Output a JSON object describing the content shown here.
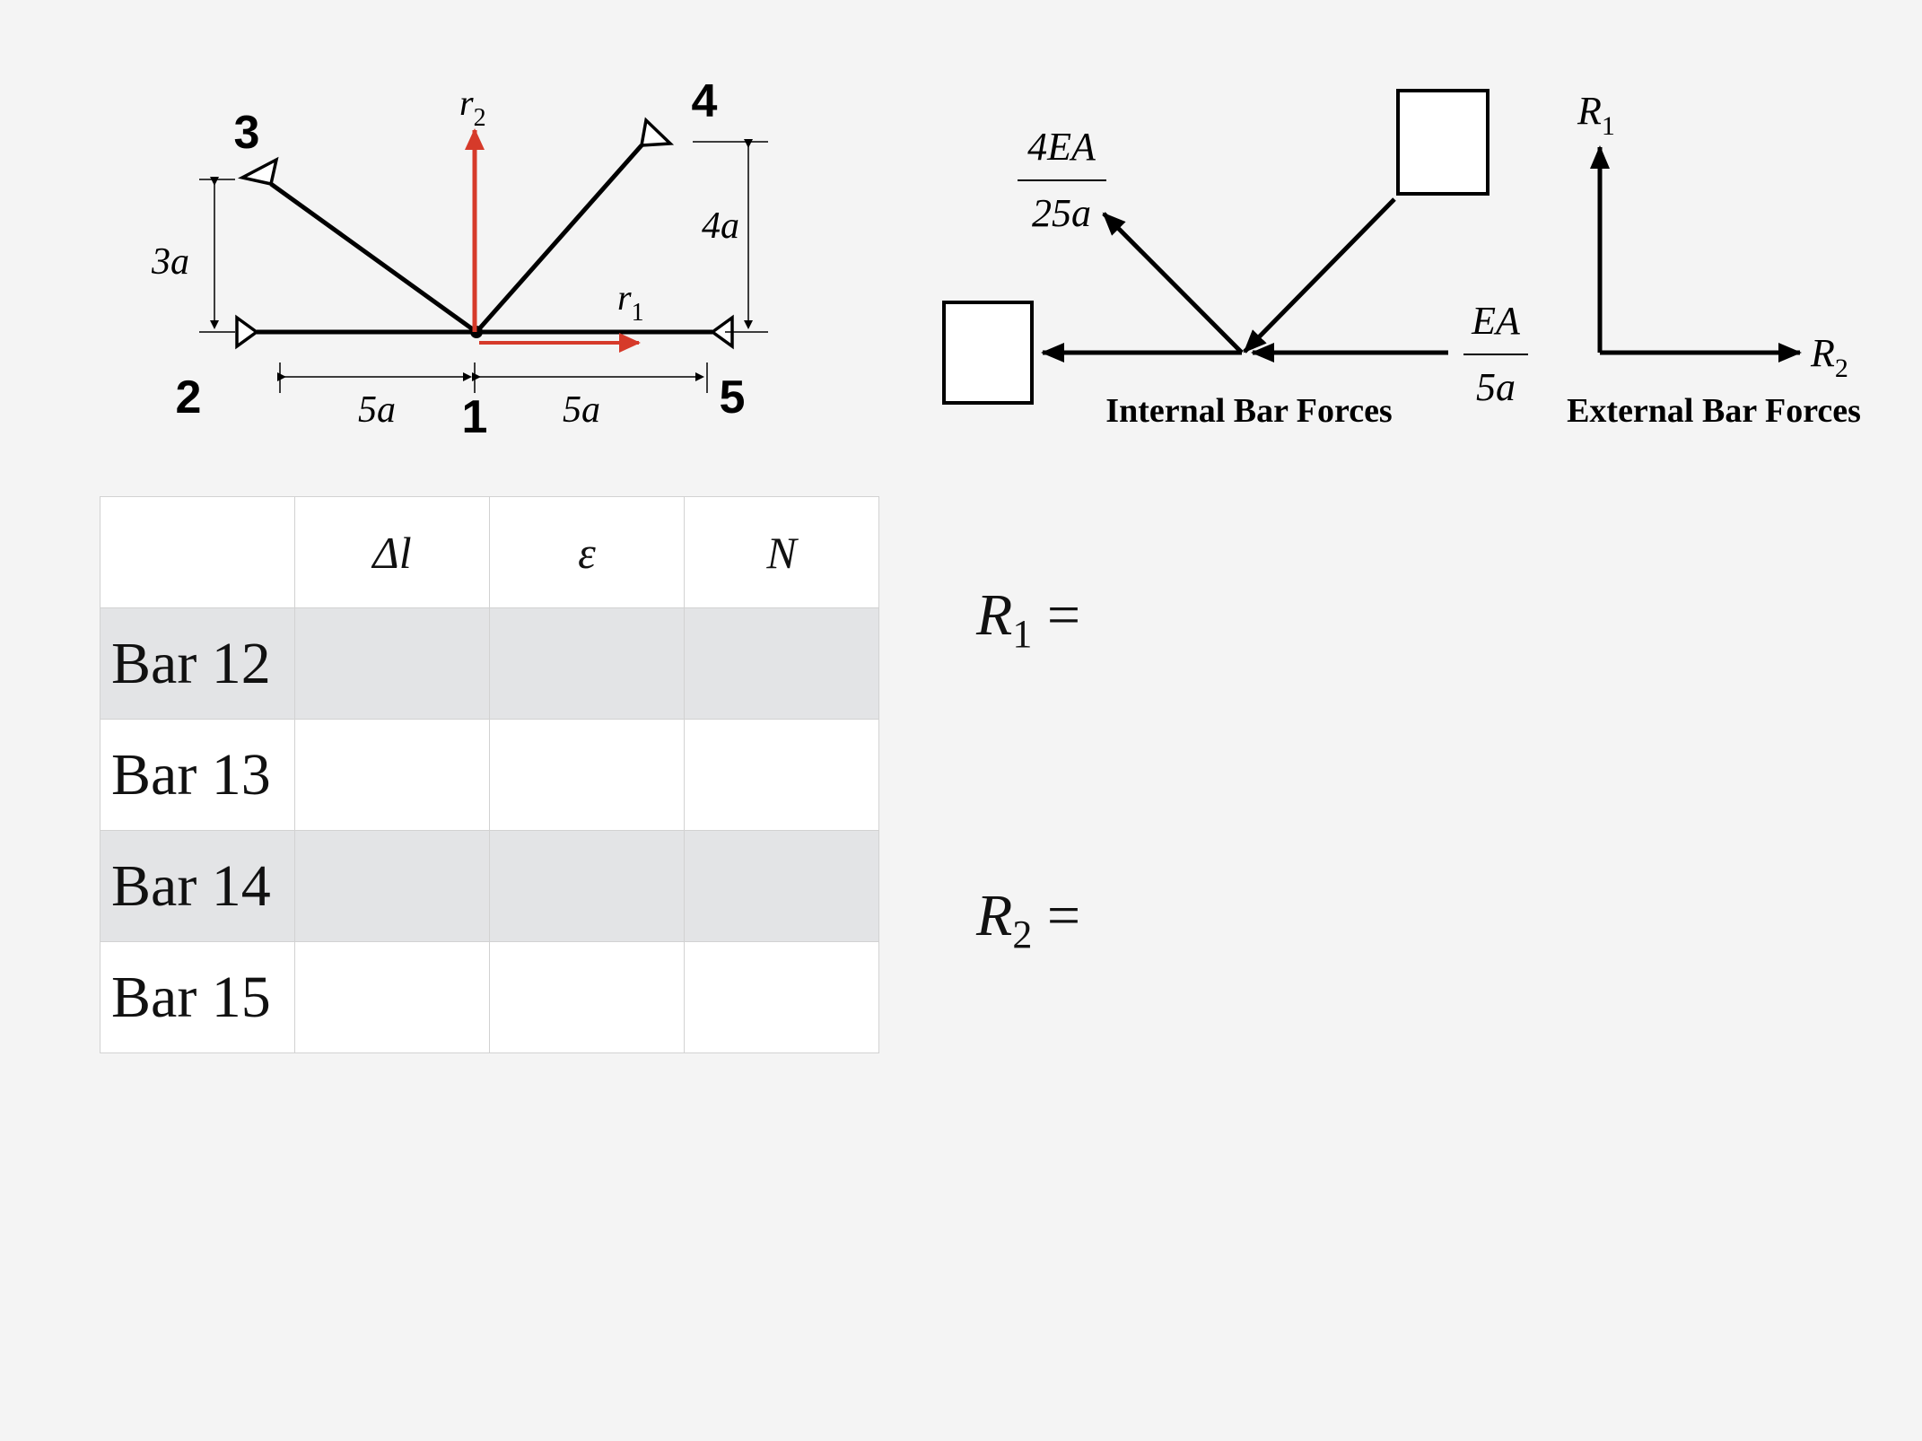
{
  "truss": {
    "node_labels": {
      "n1": "1",
      "n2": "2",
      "n3": "3",
      "n4": "4",
      "n5": "5"
    },
    "dimensions": {
      "d3a": "3a",
      "d4a": "4a",
      "d5a_left": "5a",
      "d5a_right": "5a"
    },
    "dof_labels": {
      "r1": "r",
      "r1_sub": "1",
      "r2": "r",
      "r2_sub": "2"
    },
    "accent_color": "#d63a2a"
  },
  "internal_forces": {
    "title": "Internal Bar Forces",
    "stiffness_diag_num": "4EA",
    "stiffness_diag_den": "25a",
    "stiffness_horiz_num": "EA",
    "stiffness_horiz_den": "5a"
  },
  "external_forces": {
    "title": "External Bar Forces",
    "R1": "R",
    "R1_sub": "1",
    "R2": "R",
    "R2_sub": "2"
  },
  "table": {
    "headers": [
      "",
      "Δl",
      "ε",
      "N"
    ],
    "rows": [
      "Bar 12",
      "Bar 13",
      "Bar 14",
      "Bar 15"
    ]
  },
  "equations": {
    "r1": {
      "symbol": "R",
      "sub": "1",
      "op": " ="
    },
    "r2": {
      "symbol": "R",
      "sub": "2",
      "op": " ="
    }
  }
}
